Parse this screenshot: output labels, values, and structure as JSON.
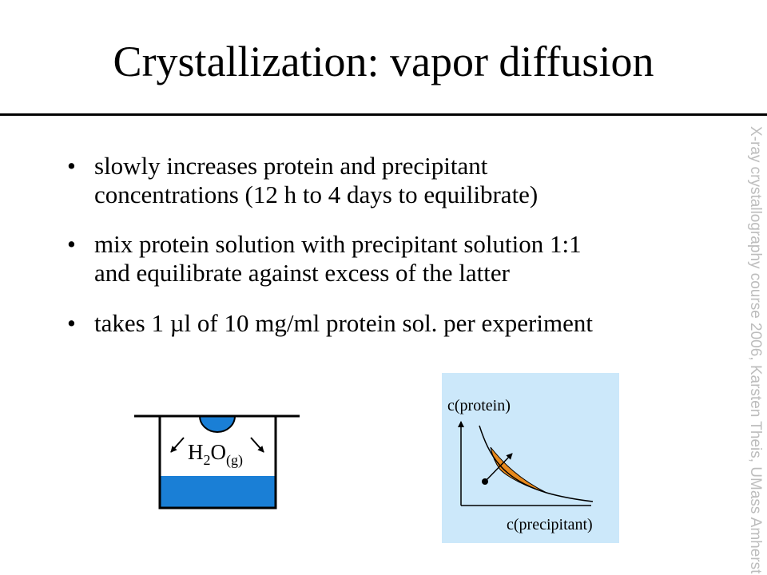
{
  "slide": {
    "title": "Crystallization: vapor diffusion",
    "bullets": [
      {
        "lines": [
          "slowly increases protein and precipitant",
          "concentrations (12 h to 4 days to equilibrate)"
        ]
      },
      {
        "lines": [
          "mix protein solution with precipitant solution 1:1",
          "and equilibrate against excess of the latter"
        ]
      },
      {
        "lines": [
          "takes 1 µl of 10 mg/ml protein sol. per experiment"
        ]
      }
    ],
    "well_label": {
      "parts": [
        "H",
        "2",
        "O",
        "(g)"
      ]
    },
    "graph": {
      "y_label": "c(protein)",
      "x_label": "c(precipitant)"
    },
    "side_note": "X-ray crystallography course 2006, Karsten Theis, UMass Amherst"
  }
}
